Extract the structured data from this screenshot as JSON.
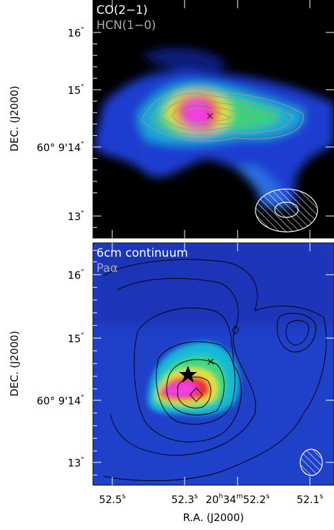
{
  "panels": [
    {
      "labels": [
        "CO(2−1)",
        "HCN(1−0)"
      ]
    },
    {
      "labels": [
        "6cm continuum",
        "Paα"
      ]
    }
  ],
  "y_axis": {
    "label": "DEC. (J2000)",
    "ticks": [
      [
        "16",
        "\""
      ],
      [
        "15",
        "\""
      ],
      [
        "60° 9'14",
        "\""
      ],
      [
        "13",
        "\""
      ]
    ]
  },
  "x_axis": {
    "label": "R.A. (J2000)",
    "ticks": [
      [
        "52.5",
        "s"
      ],
      [
        "52.3",
        "s"
      ],
      [
        "20",
        "h",
        "34",
        "m",
        "52.2",
        "s"
      ],
      [
        "52.1",
        "s"
      ]
    ]
  }
}
